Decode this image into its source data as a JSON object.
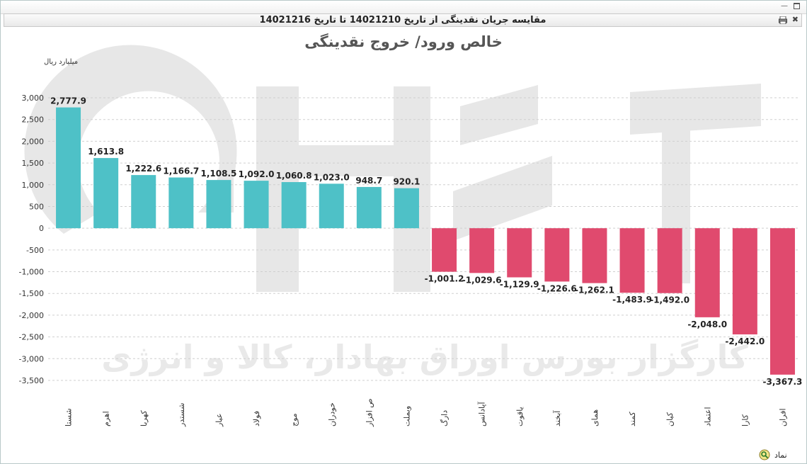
{
  "window": {
    "title": "مقایسه جریان نقدینگی از تاریخ 14021210 تا تاریخ 14021216"
  },
  "colors": {
    "positive": "#4ec1c7",
    "negative": "#e04a6e",
    "watermark": "#e3e3e3"
  },
  "watermark_text": "کارگزار بورس اوراق بهادار، کالا و انرژی",
  "footer": {
    "symbol_label": "نماد"
  },
  "chart_data": {
    "type": "bar",
    "title": "خالص ورود/ خروج نقدینگی",
    "ylabel": "میلیارد ریال",
    "xlabel": "",
    "ylim": [
      -3500,
      3000
    ],
    "yticks": [
      3000,
      2500,
      2000,
      1500,
      1000,
      500,
      0,
      -500,
      -1000,
      -1500,
      -2000,
      -2500,
      -3000,
      -3500
    ],
    "ytick_labels": [
      "3,000",
      "2,500",
      "2,000",
      "1,500",
      "1,000",
      "500",
      "0",
      "-500",
      "-1,000",
      "-1,500",
      "-2,000",
      "-2,500",
      "-3,000",
      "-3,500"
    ],
    "grid": true,
    "legend": "none",
    "categories": [
      "شستا",
      "اهرم",
      "کهربا",
      "شستدر",
      "عیار",
      "فولاد",
      "موج",
      "خودران",
      "ص افزار",
      "وبملت",
      "دارگ",
      "آپادانس",
      "یاقوت",
      "آبخند",
      "همای",
      "کمند",
      "کیان",
      "اعتماد",
      "کارا",
      "افران"
    ],
    "values": [
      2777.9,
      1613.8,
      1222.6,
      1166.7,
      1108.5,
      1092.0,
      1060.8,
      1023.0,
      948.7,
      920.1,
      -1001.2,
      -1029.6,
      -1129.9,
      -1226.6,
      -1262.1,
      -1483.9,
      -1492.0,
      -2048.0,
      -2442.0,
      -3367.3
    ],
    "value_labels": [
      "2,777.9",
      "1,613.8",
      "1,222.6",
      "1,166.7",
      "1,108.5",
      "1,092.0",
      "1,060.8",
      "1,023.0",
      "948.7",
      "920.1",
      "-1,001.2",
      "-1,029.6",
      "-1,129.9",
      "-1,226.6",
      "-1,262.1",
      "-1,483.9",
      "-1,492.0",
      "-2,048.0",
      "-2,442.0",
      "-3,367.3"
    ]
  }
}
